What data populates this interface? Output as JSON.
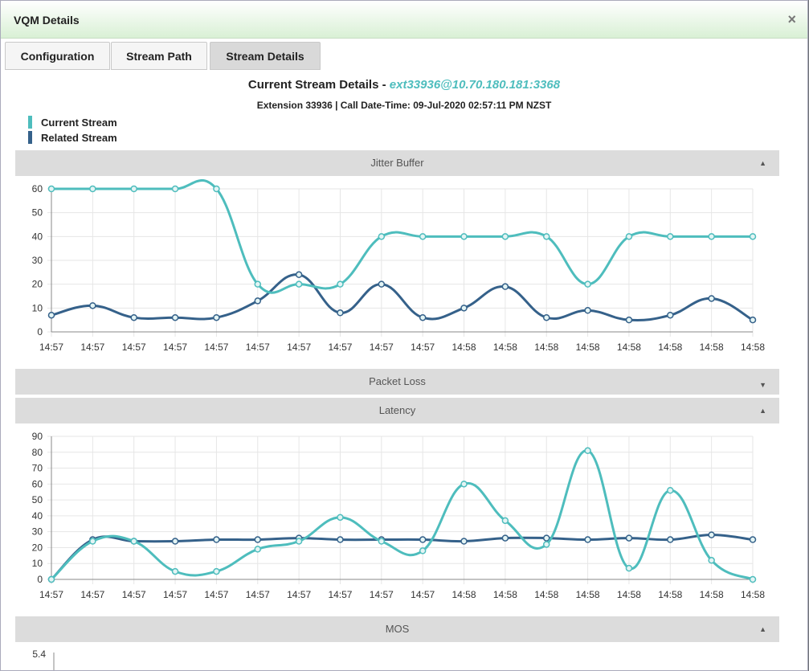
{
  "dialog": {
    "title": "VQM Details",
    "close_glyph": "×"
  },
  "tabs": [
    {
      "label": "Configuration",
      "active": false
    },
    {
      "label": "Stream Path",
      "active": false
    },
    {
      "label": "Stream Details",
      "active": true
    }
  ],
  "details": {
    "heading_prefix": "Current Stream Details - ",
    "stream_id": "ext33936@10.70.180.181:3368",
    "subheading": "Extension 33936 | Call Date-Time: 09-Jul-2020 02:57:11 PM NZST"
  },
  "legend": [
    {
      "label": "Current Stream",
      "color": "#4ebdbd"
    },
    {
      "label": "Related Stream",
      "color": "#35618a"
    }
  ],
  "panels": {
    "jitter": {
      "label": "Jitter Buffer",
      "expanded": true,
      "caret": "▲"
    },
    "packet_loss": {
      "label": "Packet Loss",
      "expanded": false,
      "caret": "▼"
    },
    "latency": {
      "label": "Latency",
      "expanded": true,
      "caret": "▲"
    },
    "mos": {
      "label": "MOS",
      "expanded": true,
      "caret": "▲",
      "first_tick": "5.4"
    }
  },
  "chart_data": [
    {
      "type": "line",
      "title": "Jitter Buffer",
      "x": [
        "14:57",
        "14:57",
        "14:57",
        "14:57",
        "14:57",
        "14:57",
        "14:57",
        "14:57",
        "14:57",
        "14:57",
        "14:58",
        "14:58",
        "14:58",
        "14:58",
        "14:58",
        "14:58",
        "14:58",
        "14:58"
      ],
      "ylim": [
        0,
        60
      ],
      "yticks": [
        0,
        10,
        20,
        30,
        40,
        50,
        60
      ],
      "grid": true,
      "series": [
        {
          "name": "Current Stream",
          "color": "#4ebdbd",
          "values": [
            60,
            60,
            60,
            60,
            60,
            20,
            20,
            20,
            40,
            40,
            40,
            40,
            40,
            20,
            40,
            40,
            40,
            40
          ]
        },
        {
          "name": "Related Stream",
          "color": "#35618a",
          "values": [
            7,
            11,
            6,
            6,
            6,
            13,
            24,
            8,
            20,
            6,
            10,
            19,
            6,
            9,
            5,
            7,
            14,
            5
          ]
        }
      ]
    },
    {
      "type": "line",
      "title": "Latency",
      "x": [
        "14:57",
        "14:57",
        "14:57",
        "14:57",
        "14:57",
        "14:57",
        "14:57",
        "14:57",
        "14:57",
        "14:57",
        "14:58",
        "14:58",
        "14:58",
        "14:58",
        "14:58",
        "14:58",
        "14:58",
        "14:58"
      ],
      "ylim": [
        0,
        90
      ],
      "yticks": [
        0,
        10,
        20,
        30,
        40,
        50,
        60,
        70,
        80,
        90
      ],
      "grid": true,
      "series": [
        {
          "name": "Current Stream",
          "color": "#4ebdbd",
          "values": [
            0,
            24,
            24,
            5,
            5,
            19,
            24,
            39,
            24,
            18,
            60,
            37,
            22,
            81,
            7,
            56,
            12,
            0
          ]
        },
        {
          "name": "Related Stream",
          "color": "#35618a",
          "values": [
            0,
            25,
            24,
            24,
            25,
            25,
            26,
            25,
            25,
            25,
            24,
            26,
            26,
            25,
            26,
            25,
            28,
            25
          ]
        }
      ]
    }
  ]
}
